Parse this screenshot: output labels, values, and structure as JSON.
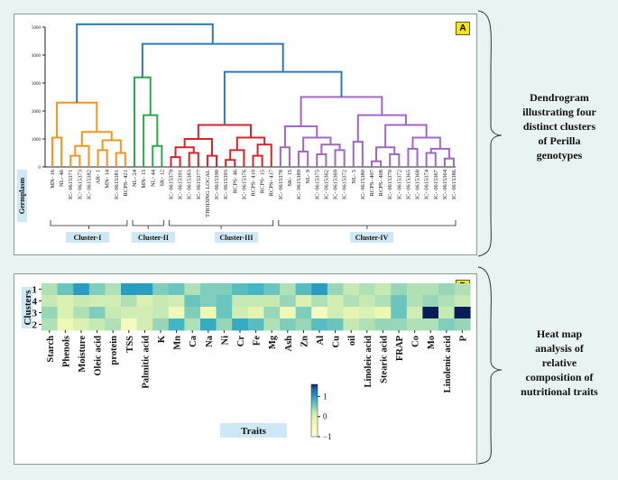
{
  "panel_a": {
    "tag": "A",
    "side_text": [
      "Dendrogram",
      "illustrating four",
      "distinct clusters",
      "of Perilla",
      "genotypes"
    ],
    "germplasm_label": "Germplasm",
    "y_ticks": [
      "0",
      "1000",
      "2000",
      "3000",
      "4000",
      "5000"
    ],
    "colors": {
      "c1": "#f7941d",
      "c2": "#2ba84a",
      "c3": "#d7242a",
      "c4": "#a066c8",
      "root": "#2b7bb9"
    },
    "clusters": [
      {
        "label": "Cluster-I"
      },
      {
        "label": "Cluster-II"
      },
      {
        "label": "Cluster-III"
      },
      {
        "label": "Cluster-IV"
      }
    ]
  },
  "chart_data": [
    {
      "type": "dendrogram",
      "title": "",
      "ylabel": "",
      "ylim": [
        0,
        5000
      ],
      "leaves": [
        "MN- 16",
        "NL- 46",
        "IC- 0615371",
        "IC- 0615373",
        "IC- 0615382",
        "AR- 1",
        "MN- 14",
        "IC- 0615381",
        "RCPS- 421",
        "NL- 24",
        "MN- 13",
        "NL- 44",
        "SK- 12",
        "IC- 0615379",
        "IC- 0615391",
        "IC- 0615383",
        "IC- 0615377",
        "THODING LOCAL",
        "IC- 0615390",
        "IC- 0615393",
        "RCPS- 46",
        "IC- 0615376",
        "RCPS- 410",
        "RCPS- 15",
        "RCPS- 417",
        "IC- 0615378",
        "SK- 15",
        "IC- 0615389",
        "NL- 9",
        "IC- 0615375",
        "IC- 0615362",
        "IC- 0615369",
        "IC- 0615372",
        "NL- 5",
        "IC- 0615380",
        "RCPS- 407",
        "RCPS- 408",
        "IC- 0615370",
        "IC- 0615372",
        "IC- 0615365",
        "IC- 0615368",
        "IC- 0615374",
        "IC- 0615367",
        "IC- 0615364",
        "IC- 0615386"
      ],
      "cluster_of_leaf": [
        1,
        1,
        1,
        1,
        1,
        1,
        1,
        1,
        1,
        2,
        2,
        2,
        2,
        3,
        3,
        3,
        3,
        3,
        3,
        3,
        3,
        3,
        3,
        3,
        3,
        4,
        4,
        4,
        4,
        4,
        4,
        4,
        4,
        4,
        4,
        4,
        4,
        4,
        4,
        4,
        4,
        4,
        4,
        4,
        4
      ],
      "merge_heights": {
        "root": 5100,
        "c2_c34": 4400,
        "c3_c4": 3400,
        "c1": 2300,
        "c2": 3200,
        "c3": 1500,
        "c4": 2500
      }
    },
    {
      "type": "heatmap",
      "xlabel": "Traits",
      "ylabel": "Clusters",
      "rows": [
        "1",
        "4",
        "3",
        "2"
      ],
      "columns": [
        "Starch",
        "Phenols",
        "Moisture",
        "Oleic acid",
        "protein",
        "TSS",
        "Palmitic acid",
        "K",
        "Mn",
        "Ca",
        "Na",
        "Ni",
        "Cr",
        "Fe",
        "Mg",
        "Ash",
        "Zn",
        "Al",
        "Cu",
        "oil",
        "Linoleic acid",
        "Stearic acid",
        "FRAP",
        "Co",
        "Mo",
        "Linolenic acid",
        "P"
      ],
      "values": [
        [
          0.3,
          0.6,
          1.0,
          0.5,
          0.3,
          1.0,
          1.0,
          0.5,
          0.6,
          0.3,
          0.5,
          0.5,
          0.7,
          0.8,
          0.6,
          0.3,
          0.7,
          1.0,
          0.4,
          0.2,
          0.3,
          0.2,
          0.4,
          0.3,
          0.3,
          0.4,
          0.3
        ],
        [
          0.2,
          0.0,
          0.2,
          0.1,
          0.1,
          0.3,
          0.0,
          0.2,
          0.1,
          0.6,
          0.5,
          0.6,
          0.2,
          0.2,
          0.2,
          0.4,
          0.0,
          0.3,
          0.1,
          0.3,
          0.2,
          0.3,
          0.6,
          0.3,
          0.4,
          0.3,
          0.2
        ],
        [
          0.4,
          0.0,
          0.3,
          0.5,
          0.2,
          0.1,
          0.1,
          0.2,
          -0.4,
          0.5,
          -0.3,
          0.6,
          0.1,
          -0.1,
          0.4,
          -0.3,
          0.5,
          -0.5,
          0.1,
          -0.1,
          0.0,
          -0.2,
          0.6,
          0.1,
          1.6,
          0.2,
          1.6
        ],
        [
          0.3,
          -0.3,
          0.0,
          0.2,
          0.3,
          -0.5,
          0.1,
          0.4,
          0.8,
          0.3,
          0.9,
          0.4,
          0.9,
          0.7,
          0.3,
          0.5,
          0.4,
          0.7,
          0.6,
          0.2,
          0.3,
          0.4,
          0.4,
          0.3,
          0.3,
          0.5,
          0.4
        ]
      ],
      "colorbar": {
        "ticks": [
          "1",
          "0",
          "−1"
        ],
        "range": [
          -1,
          1.6
        ]
      }
    }
  ],
  "panel_b": {
    "tag": "B",
    "side_text": [
      "Heat map",
      "analysis of",
      "relative",
      "composition of",
      "nutritional traits"
    ],
    "traits_label": "Traits",
    "clusters_label": "Clusters"
  }
}
